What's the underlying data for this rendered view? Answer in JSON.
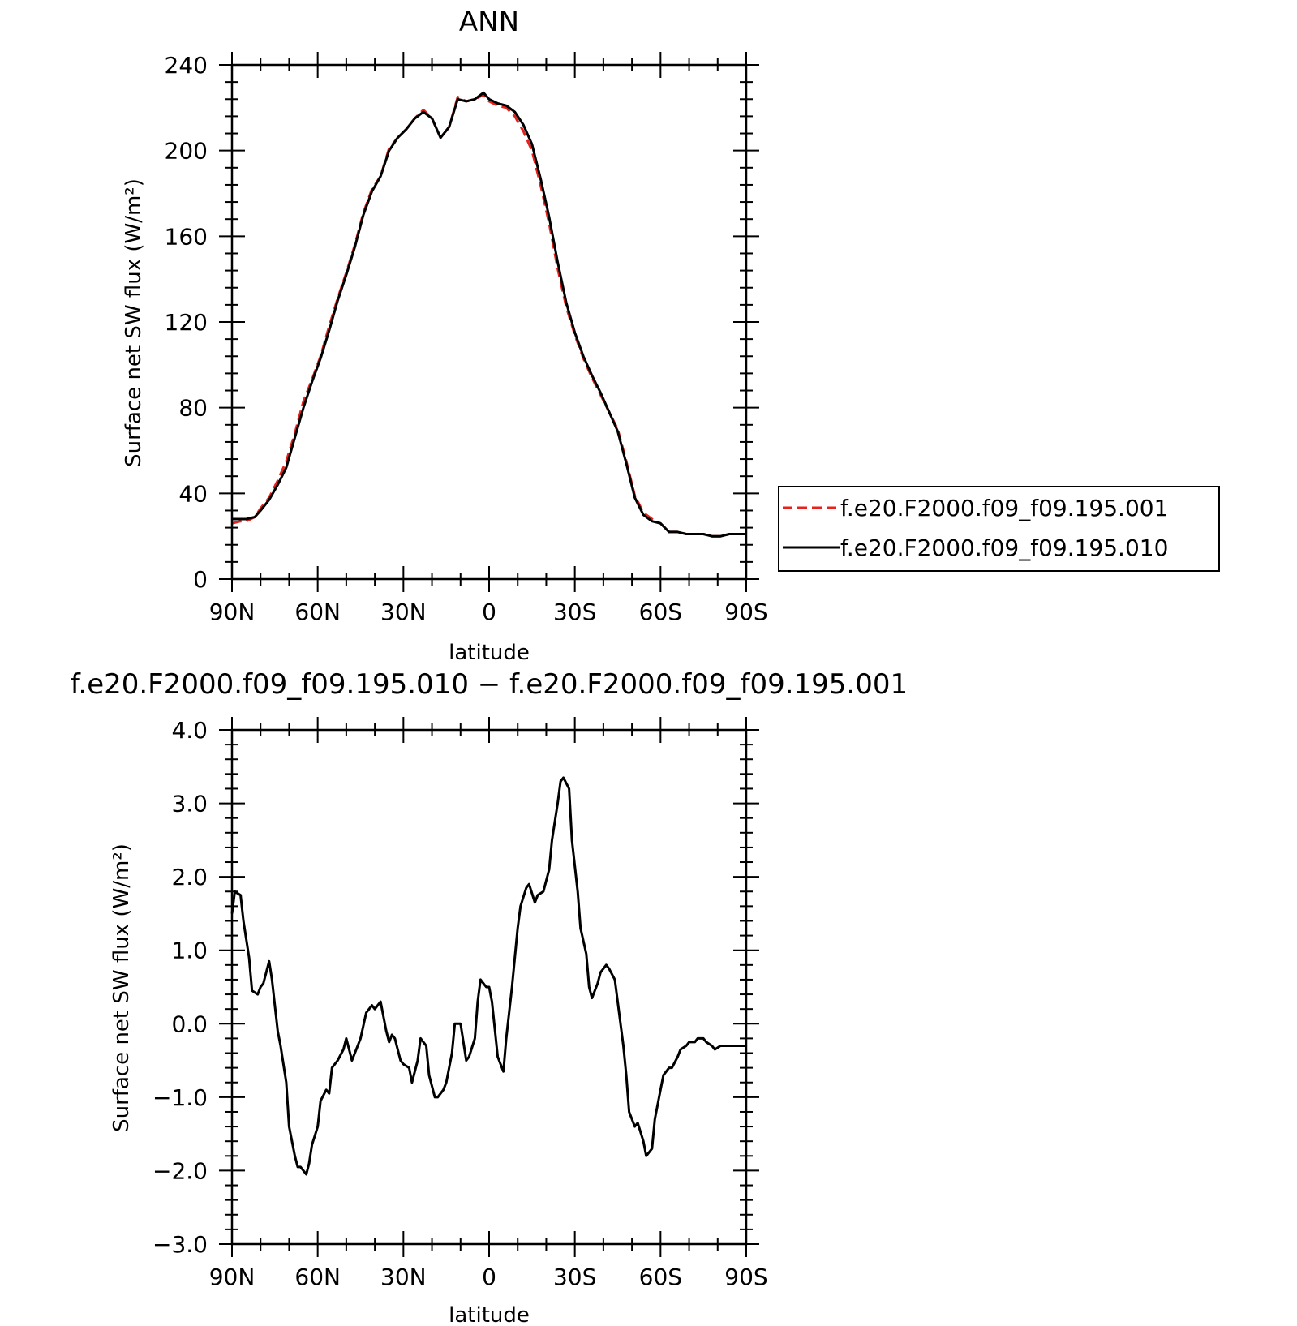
{
  "chart_data": [
    {
      "type": "line",
      "title": "ANN",
      "xlabel": "latitude",
      "ylabel": "Surface net SW flux (W/m²)",
      "xlim": [
        90,
        -90
      ],
      "ylim": [
        0,
        240
      ],
      "x_ticks": [
        90,
        60,
        30,
        0,
        -30,
        -60,
        -90
      ],
      "x_tick_labels": [
        "90N",
        "60N",
        "30N",
        "0",
        "30S",
        "60S",
        "90S"
      ],
      "y_ticks": [
        0,
        40,
        80,
        120,
        160,
        200,
        240
      ],
      "y_tick_labels": [
        "0",
        "40",
        "80",
        "120",
        "160",
        "200",
        "240"
      ],
      "grid": false,
      "legend_position": "right, outside",
      "series": [
        {
          "name": "f.e20.F2000.f09_f09.195.001",
          "color": "#e8211b",
          "dash": "dashed",
          "x": [
            90,
            87,
            85,
            82,
            80,
            77,
            74,
            71,
            68,
            65,
            62,
            59,
            56,
            53,
            50,
            47,
            44,
            41,
            38,
            35,
            32,
            29,
            26,
            23,
            20,
            17,
            14,
            11,
            8,
            5,
            2,
            0,
            -3,
            -6,
            -9,
            -12,
            -15,
            -18,
            -21,
            -24,
            -27,
            -30,
            -33,
            -36,
            -39,
            -42,
            -45,
            -48,
            -51,
            -54,
            -57,
            -60,
            -63,
            -66,
            -69,
            -72,
            -75,
            -78,
            -81,
            -84,
            -87,
            -90
          ],
          "y": [
            26,
            27,
            27,
            29,
            33,
            38,
            46,
            55,
            68,
            83,
            93,
            104,
            118,
            131,
            143,
            156,
            171,
            182,
            188,
            201,
            206,
            210,
            215,
            219,
            215,
            206,
            211,
            225,
            223,
            224,
            226,
            223,
            221,
            220,
            216,
            209,
            200,
            184,
            166,
            145,
            127,
            114,
            103,
            94,
            86,
            78,
            70,
            55,
            39,
            31,
            28,
            26,
            22,
            22,
            21,
            21,
            21,
            20,
            20,
            21,
            21,
            21
          ]
        },
        {
          "name": "f.e20.F2000.f09_f09.195.010",
          "color": "#000000",
          "dash": "solid",
          "x": [
            90,
            87,
            85,
            82,
            80,
            77,
            74,
            71,
            68,
            65,
            62,
            59,
            56,
            53,
            50,
            47,
            44,
            41,
            38,
            35,
            32,
            29,
            26,
            23,
            20,
            17,
            14,
            11,
            8,
            5,
            2,
            0,
            -3,
            -6,
            -9,
            -12,
            -15,
            -18,
            -21,
            -24,
            -27,
            -30,
            -33,
            -36,
            -39,
            -42,
            -45,
            -48,
            -51,
            -54,
            -57,
            -60,
            -63,
            -66,
            -69,
            -72,
            -75,
            -78,
            -81,
            -84,
            -87,
            -90
          ],
          "y": [
            28,
            28,
            28,
            29,
            32,
            37,
            44,
            52,
            66,
            80,
            92,
            103,
            116,
            130,
            142,
            155,
            170,
            181,
            188,
            200,
            206,
            210,
            215,
            218,
            215,
            206,
            211,
            224,
            223,
            224,
            227,
            224,
            222,
            221,
            218,
            212,
            203,
            187,
            169,
            148,
            129,
            115,
            104,
            95,
            87,
            78,
            69,
            54,
            38,
            30,
            27,
            26,
            22,
            22,
            21,
            21,
            21,
            20,
            20,
            21,
            21,
            21
          ]
        }
      ]
    },
    {
      "type": "line",
      "title": "f.e20.F2000.f09_f09.195.010 − f.e20.F2000.f09_f09.195.001",
      "xlabel": "latitude",
      "ylabel": "Surface net SW flux (W/m²)",
      "xlim": [
        90,
        -90
      ],
      "ylim": [
        -3.0,
        4.0
      ],
      "x_ticks": [
        90,
        60,
        30,
        0,
        -30,
        -60,
        -90
      ],
      "x_tick_labels": [
        "90N",
        "60N",
        "30N",
        "0",
        "30S",
        "60S",
        "90S"
      ],
      "y_ticks": [
        -3.0,
        -2.0,
        -1.0,
        0.0,
        1.0,
        2.0,
        3.0,
        4.0
      ],
      "y_tick_labels": [
        "−3.0",
        "−2.0",
        "−1.0",
        "0.0",
        "1.0",
        "2.0",
        "3.0",
        "4.0"
      ],
      "grid": false,
      "series": [
        {
          "color": "#000000",
          "x": [
            90,
            89,
            87,
            86,
            84,
            83,
            81,
            80,
            79,
            77,
            76,
            74,
            73,
            71,
            70,
            68,
            67,
            66,
            64,
            63,
            62,
            60,
            59,
            57,
            56,
            55,
            53,
            51,
            50,
            48,
            46,
            45,
            43,
            41,
            40,
            38,
            36,
            35,
            34,
            33,
            31,
            30,
            28,
            27,
            25,
            24,
            22,
            21,
            19,
            18,
            16,
            15,
            13,
            12,
            10,
            9,
            8,
            7,
            5,
            4,
            3,
            1,
            0,
            -1,
            -3,
            -5,
            -6,
            -8,
            -10,
            -11,
            -13,
            -14,
            -16,
            -17,
            -19,
            -21,
            -22,
            -24,
            -25,
            -26,
            -28,
            -29,
            -31,
            -32,
            -34,
            -35,
            -36,
            -38,
            -39,
            -41,
            -42,
            -44,
            -45,
            -47,
            -48,
            -49,
            -51,
            -52,
            -54,
            -55,
            -57,
            -58,
            -60,
            -61,
            -63,
            -64,
            -66,
            -67,
            -69,
            -70,
            -72,
            -73,
            -75,
            -76,
            -78,
            -79,
            -81,
            -82,
            -84,
            -85,
            -87,
            -88,
            -90
          ],
          "y": [
            1.5,
            1.8,
            1.75,
            1.4,
            0.9,
            0.45,
            0.4,
            0.5,
            0.55,
            0.85,
            0.6,
            -0.1,
            -0.3,
            -0.8,
            -1.4,
            -1.8,
            -1.95,
            -1.95,
            -2.05,
            -1.9,
            -1.65,
            -1.4,
            -1.05,
            -0.9,
            -0.95,
            -0.6,
            -0.5,
            -0.35,
            -0.2,
            -0.5,
            -0.3,
            -0.2,
            0.15,
            0.25,
            0.2,
            0.3,
            -0.1,
            -0.25,
            -0.15,
            -0.2,
            -0.5,
            -0.55,
            -0.6,
            -0.8,
            -0.5,
            -0.2,
            -0.3,
            -0.7,
            -1.0,
            -1.0,
            -0.9,
            -0.8,
            -0.4,
            0.0,
            0.0,
            -0.25,
            -0.5,
            -0.45,
            -0.2,
            0.3,
            0.6,
            0.5,
            0.5,
            0.3,
            -0.45,
            -0.65,
            -0.2,
            0.5,
            1.3,
            1.6,
            1.85,
            1.9,
            1.65,
            1.75,
            1.8,
            2.1,
            2.5,
            3.0,
            3.3,
            3.35,
            3.2,
            2.5,
            1.8,
            1.3,
            0.95,
            0.5,
            0.35,
            0.55,
            0.7,
            0.8,
            0.75,
            0.6,
            0.3,
            -0.3,
            -0.7,
            -1.2,
            -1.4,
            -1.35,
            -1.6,
            -1.8,
            -1.7,
            -1.3,
            -0.9,
            -0.7,
            -0.6,
            -0.6,
            -0.45,
            -0.35,
            -0.3,
            -0.25,
            -0.25,
            -0.2,
            -0.2,
            -0.25,
            -0.3,
            -0.35,
            -0.3,
            -0.3,
            -0.3,
            -0.3,
            -0.3,
            -0.3,
            -0.3
          ]
        }
      ]
    }
  ]
}
